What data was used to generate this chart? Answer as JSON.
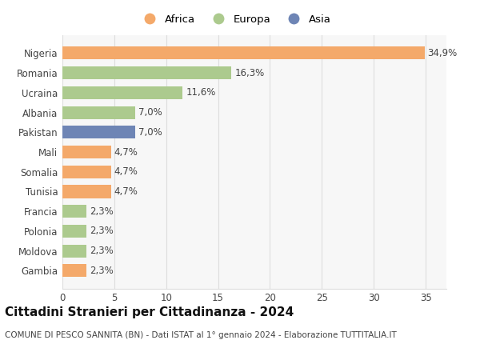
{
  "categories": [
    "Nigeria",
    "Romania",
    "Ucraina",
    "Albania",
    "Pakistan",
    "Mali",
    "Somalia",
    "Tunisia",
    "Francia",
    "Polonia",
    "Moldova",
    "Gambia"
  ],
  "values": [
    34.9,
    16.3,
    11.6,
    7.0,
    7.0,
    4.7,
    4.7,
    4.7,
    2.3,
    2.3,
    2.3,
    2.3
  ],
  "labels": [
    "34,9%",
    "16,3%",
    "11,6%",
    "7,0%",
    "7,0%",
    "4,7%",
    "4,7%",
    "4,7%",
    "2,3%",
    "2,3%",
    "2,3%",
    "2,3%"
  ],
  "continents": [
    "Africa",
    "Europa",
    "Europa",
    "Europa",
    "Asia",
    "Africa",
    "Africa",
    "Africa",
    "Europa",
    "Europa",
    "Europa",
    "Africa"
  ],
  "colors": {
    "Africa": "#F4A96A",
    "Europa": "#ACCA8E",
    "Asia": "#6E85B5"
  },
  "legend_order": [
    "Africa",
    "Europa",
    "Asia"
  ],
  "xlim": [
    0,
    37
  ],
  "xticks": [
    0,
    5,
    10,
    15,
    20,
    25,
    30,
    35
  ],
  "title": "Cittadini Stranieri per Cittadinanza - 2024",
  "subtitle": "COMUNE DI PESCO SANNITA (BN) - Dati ISTAT al 1° gennaio 2024 - Elaborazione TUTTITALIA.IT",
  "background_color": "#FFFFFF",
  "grid_color": "#DDDDDD",
  "bar_height": 0.65,
  "label_fontsize": 8.5,
  "tick_fontsize": 8.5,
  "title_fontsize": 11,
  "subtitle_fontsize": 7.5
}
